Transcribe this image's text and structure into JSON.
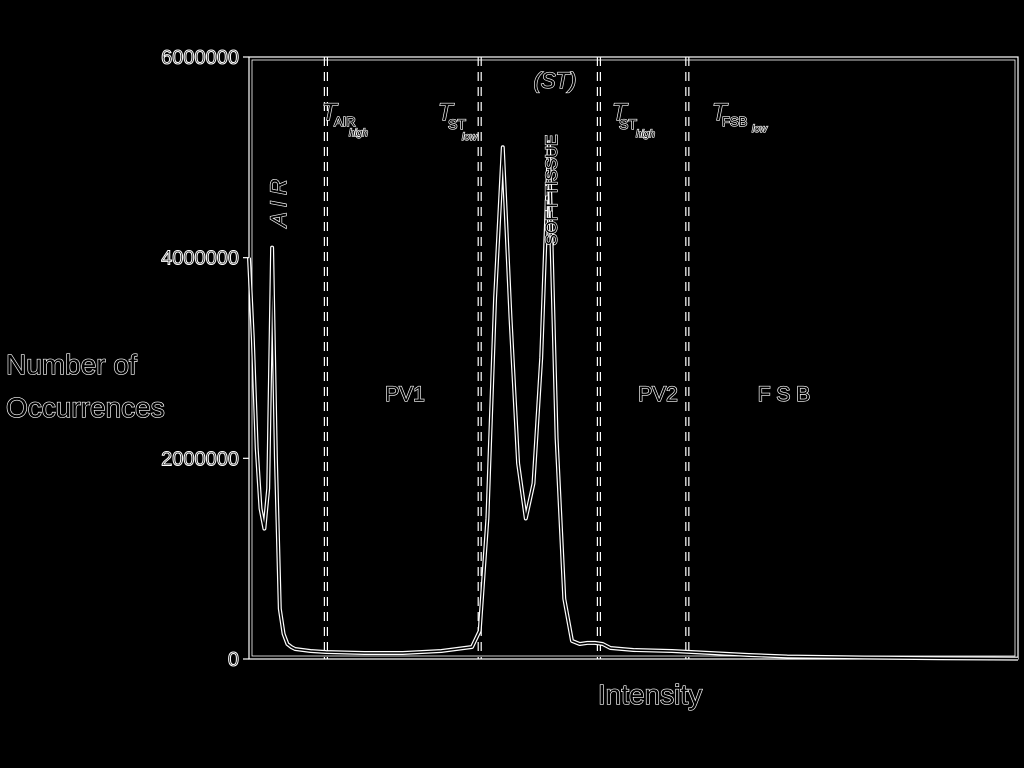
{
  "chart_data": {
    "type": "line",
    "title": "",
    "xlabel": "Intensity",
    "ylabel_lines": [
      "Number of",
      "Occurrences"
    ],
    "ylim": [
      0,
      6000000
    ],
    "yticks": [
      {
        "value": 0,
        "label": "0"
      },
      {
        "value": 2000000,
        "label": "2000000"
      },
      {
        "value": 4000000,
        "label": "4000000"
      },
      {
        "value": 6000000,
        "label": "6000000"
      }
    ],
    "xlim": [
      0,
      1000
    ],
    "x_tick_labels_shown": false,
    "grid": false,
    "series": [
      {
        "x": [
          0,
          5,
          10,
          15,
          20,
          25,
          30,
          35,
          40,
          45,
          50,
          55,
          60,
          70,
          80,
          100,
          150,
          200,
          250,
          290,
          300,
          310,
          320,
          330,
          340,
          350,
          360,
          370,
          380,
          390,
          400,
          410,
          420,
          430,
          440,
          450,
          460,
          470,
          500,
          550,
          600,
          650,
          700,
          800,
          900,
          1000
        ],
        "y": [
          4000000,
          3200000,
          2100000,
          1500000,
          1300000,
          1700000,
          4100000,
          2000000,
          500000,
          250000,
          150000,
          120000,
          100000,
          90000,
          80000,
          70000,
          60000,
          60000,
          80000,
          120000,
          280000,
          1400000,
          3600000,
          5100000,
          3400000,
          1950000,
          1400000,
          1750000,
          3000000,
          5150000,
          2200000,
          600000,
          180000,
          150000,
          160000,
          160000,
          150000,
          110000,
          90000,
          80000,
          60000,
          40000,
          25000,
          15000,
          8000,
          4000
        ]
      }
    ],
    "thresholds": [
      {
        "x": 100,
        "label_main": "T",
        "label_sub": "AIR",
        "label_subsub": "high"
      },
      {
        "x": 300,
        "label_main": "T",
        "label_sub": "ST",
        "label_subsub": "low"
      },
      {
        "x": 455,
        "label_main": "T",
        "label_sub": "ST",
        "label_subsub": "high"
      },
      {
        "x": 570,
        "label_main": "T",
        "label_sub": "FSB",
        "label_subsub": "low"
      }
    ],
    "annotations": {
      "air": "A I R",
      "soft_tissue": "SOFT TISSUE",
      "st": "(ST)",
      "pv1": "PV1",
      "pv2": "PV2",
      "fsb": "F S B"
    }
  }
}
